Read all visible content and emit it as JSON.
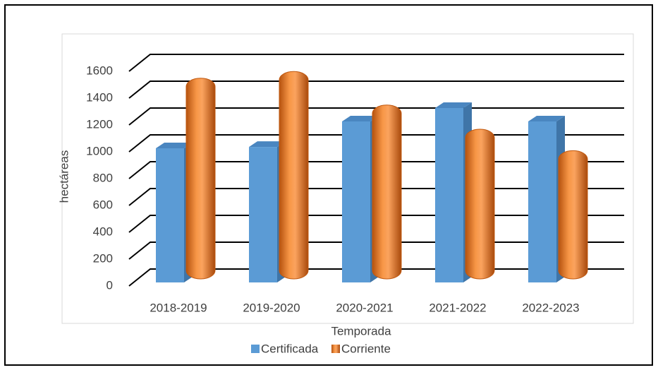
{
  "chart_data": {
    "type": "bar3d",
    "x_label": "Temporada",
    "y_label": "hectáreas",
    "categories": [
      "2018-2019",
      "2019-2020",
      "2020-2021",
      "2021-2022",
      "2022-2023"
    ],
    "series": [
      {
        "name": "Certificada",
        "color": "#5b9bd5",
        "values": [
          1000,
          1010,
          1200,
          1300,
          1200
        ]
      },
      {
        "name": "Corriente",
        "color": "#ed7d31",
        "values": [
          1480,
          1530,
          1280,
          1100,
          940
        ]
      }
    ],
    "ylim": [
      0,
      1600
    ],
    "yticks": [
      0,
      200,
      400,
      600,
      800,
      1000,
      1200,
      1400,
      1600
    ],
    "grid": true
  }
}
